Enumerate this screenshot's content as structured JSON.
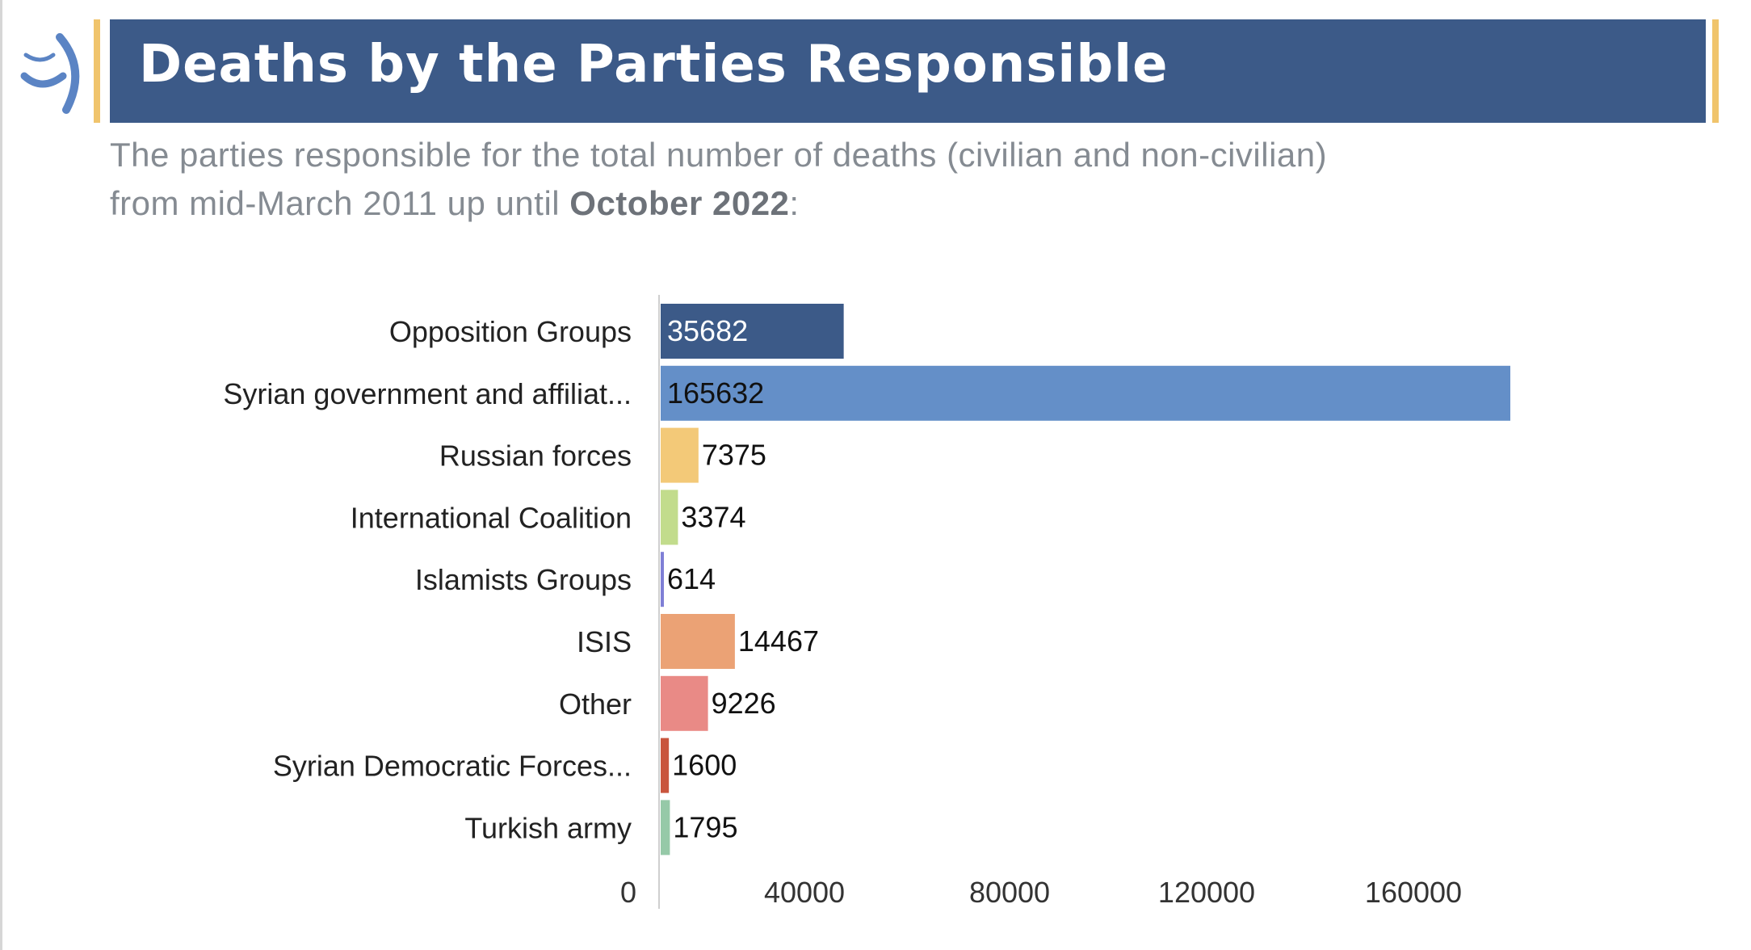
{
  "header": {
    "title": "Deaths by the Parties Responsible",
    "subtitle_line1": "The parties responsible for the total number of deaths (civilian and non-civilian)",
    "subtitle_line2_prefix": "from mid-March 2011 up until ",
    "subtitle_line2_bold": "October 2022",
    "subtitle_line2_suffix": ":"
  },
  "logo": {
    "icon": "crescent-logo-icon",
    "color": "#5b84c4"
  },
  "colors": {
    "title_band": "#3c5a88",
    "accent_bars": "#f0c46c",
    "subtitle": "#858b92"
  },
  "chart_data": {
    "type": "bar",
    "orientation": "horizontal",
    "title": "",
    "xlabel": "",
    "ylabel": "",
    "categories": [
      "Opposition Groups",
      "Syrian government and affiliat...",
      "Russian forces",
      "International Coalition",
      "Islamists Groups",
      "ISIS",
      "Other",
      "Syrian Democratic Forces...",
      "Turkish army"
    ],
    "values": [
      35682,
      165632,
      7375,
      3374,
      614,
      14467,
      9226,
      1600,
      1795
    ],
    "colors": [
      "#3c5a88",
      "#648fc8",
      "#f3c978",
      "#c2dc8c",
      "#7f7fd6",
      "#eba275",
      "#e98a86",
      "#c9553d",
      "#96c9a8"
    ],
    "value_label_colors": [
      "#ffffff",
      "#111111",
      "#111111",
      "#111111",
      "#111111",
      "#111111",
      "#111111",
      "#111111",
      "#111111"
    ],
    "x_ticks": [
      "0",
      "40000",
      "80000",
      "120000",
      "160000"
    ],
    "xlim": [
      0,
      165632
    ],
    "grid": false,
    "legend": "none",
    "data_labels": true
  }
}
